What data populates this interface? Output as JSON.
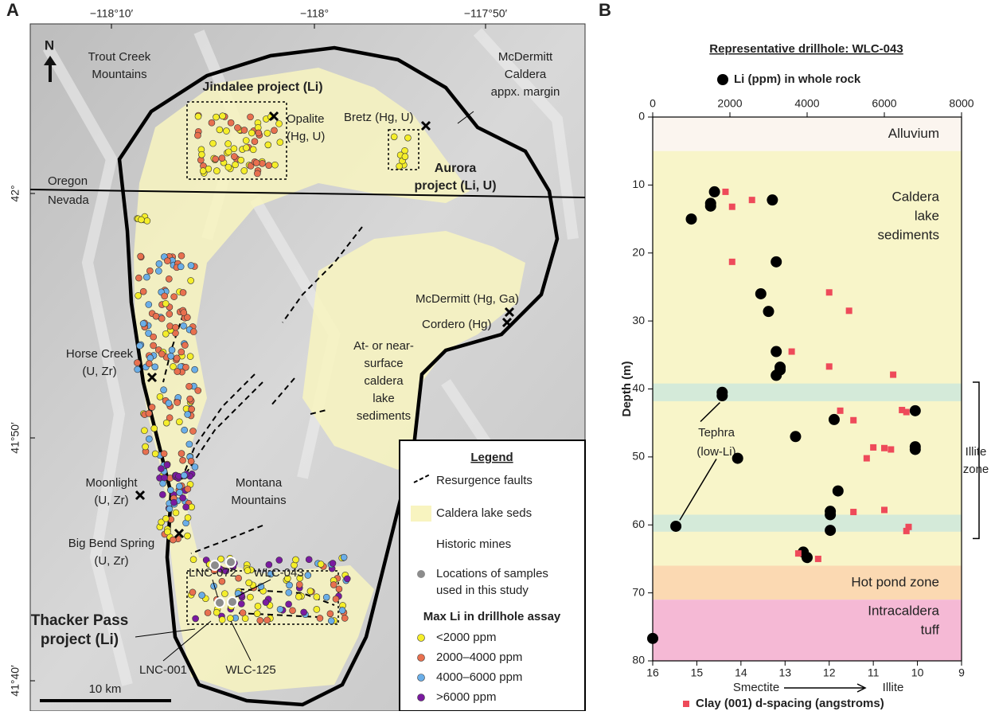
{
  "panel_labels": [
    "A",
    "B"
  ],
  "map": {
    "lon_ticks": [
      "−118°10′",
      "−118°",
      "−117°50′"
    ],
    "lat_ticks": [
      "42°",
      "41°50′",
      "41°40′"
    ],
    "north": "N",
    "scale": "10 km",
    "labels": [
      {
        "lines": [
          "Trout Creek",
          "Mountains"
        ]
      },
      {
        "lines": [
          "McDermitt",
          "Caldera",
          "appx. margin"
        ]
      },
      {
        "lines": [
          "Jindalee project (Li)"
        ],
        "bold": true
      },
      {
        "lines": [
          "Opalite",
          "(Hg, U)"
        ]
      },
      {
        "lines": [
          "Bretz (Hg, U)"
        ]
      },
      {
        "lines": [
          "Aurora",
          "project (Li, U)"
        ],
        "bold": true
      },
      {
        "lines": [
          "Oregon"
        ]
      },
      {
        "lines": [
          "Nevada"
        ]
      },
      {
        "lines": [
          "McDermitt (Hg, Ga)"
        ]
      },
      {
        "lines": [
          "Cordero (Hg)"
        ]
      },
      {
        "lines": [
          "Horse Creek",
          "(U, Zr)"
        ]
      },
      {
        "lines": [
          "At- or near-",
          "surface",
          "caldera",
          "lake",
          "sediments"
        ]
      },
      {
        "lines": [
          "Moonlight",
          "(U, Zr)"
        ]
      },
      {
        "lines": [
          "Montana",
          "Mountains"
        ]
      },
      {
        "lines": [
          "Big Bend Spring",
          "(U, Zr)"
        ]
      },
      {
        "lines": [
          "LNC-072"
        ]
      },
      {
        "lines": [
          "WLC-043"
        ]
      },
      {
        "lines": [
          "Thacker Pass",
          "project (Li)"
        ],
        "bold": true
      },
      {
        "lines": [
          "LNC-001"
        ]
      },
      {
        "lines": [
          "WLC-125"
        ]
      }
    ],
    "legend": {
      "title": "Legend",
      "items": [
        {
          "lines": [
            "Resurgence faults"
          ]
        },
        {
          "lines": [
            "Caldera lake seds"
          ],
          "color": "#f8f4c0"
        },
        {
          "lines": [
            "Historic mines"
          ]
        },
        {
          "lines": [
            "Locations of samples",
            "used in this study"
          ],
          "color": "#8c8c8c"
        }
      ],
      "li_title": "Max Li in drillhole assay",
      "li_classes": [
        {
          "label": "<2000 ppm",
          "color": "#f5ee2a"
        },
        {
          "label": "2000–4000 ppm",
          "color": "#e8704f"
        },
        {
          "label": "4000–6000 ppm",
          "color": "#6aaee8"
        },
        {
          "label": ">6000 ppm",
          "color": "#7a1aa0"
        }
      ]
    }
  },
  "chart_data": {
    "type": "scatter",
    "title": "Representative drillhole: WLC-043",
    "y_label": "Depth (m)",
    "x_label_left": "Smectite",
    "x_label_right": "Illite",
    "ylim": [
      0,
      80
    ],
    "yticks": [
      0,
      10,
      20,
      30,
      40,
      50,
      60,
      70,
      80
    ],
    "xlim": [
      16,
      9
    ],
    "xticks": [
      16,
      15,
      14,
      13,
      12,
      11,
      10,
      9
    ],
    "x2lim": [
      0,
      8000
    ],
    "x2ticks": [
      0,
      2000,
      4000,
      6000,
      8000
    ],
    "zones": [
      {
        "lines": [
          "Alluvium"
        ],
        "range": [
          0,
          5
        ],
        "color": "#fbf5ef"
      },
      {
        "lines": [
          "Caldera",
          "lake",
          "sediments"
        ],
        "range": [
          5,
          66
        ],
        "color": "#f8f5c9"
      },
      {
        "lines": [
          "Hot pond zone"
        ],
        "range": [
          66,
          71
        ],
        "color": "#fbd9b2"
      },
      {
        "lines": [
          "Intracaldera",
          "tuff"
        ],
        "range": [
          71,
          80
        ],
        "color": "#f5b9d5"
      }
    ],
    "bands": [
      [
        39.2,
        41.8
      ],
      [
        58.5,
        61
      ]
    ],
    "band_color": "#d4ead9",
    "bracket": {
      "lines": [
        "Illite",
        "zone"
      ],
      "range": [
        39,
        62
      ]
    },
    "annotation": {
      "lines": [
        "Tephra",
        "(low-Li)"
      ]
    },
    "series": [
      {
        "name": "Li (ppm) in whole rock",
        "color": "#000000",
        "marker": "circle",
        "axis": "x2",
        "x": [
          1600,
          3100,
          1500,
          1500,
          1000,
          3200,
          2800,
          3000,
          3200,
          3300,
          3300,
          3200,
          1800,
          1800,
          6800,
          4700,
          3700,
          6800,
          6800,
          2200,
          4800,
          4600,
          4600,
          600,
          4600,
          3900,
          4000,
          0
        ],
        "values": [
          11,
          12.2,
          12.7,
          13.1,
          15,
          21.3,
          26,
          28.6,
          34.5,
          36.8,
          37.2,
          38,
          40.5,
          41,
          43.2,
          44.5,
          47,
          48.5,
          48.9,
          50.2,
          55,
          58,
          58.5,
          60.2,
          60.8,
          64,
          64.8,
          76.7
        ]
      },
      {
        "name": "Clay (001) d-spacing (angstroms)",
        "color": "#ee4a5a",
        "marker": "square",
        "x": [
          14.35,
          13.75,
          14.2,
          14.2,
          12.0,
          11.55,
          12.85,
          12.0,
          10.55,
          11.75,
          11.45,
          10.35,
          10.25,
          11.0,
          11.15,
          10.75,
          10.6,
          11.45,
          10.75,
          10.2,
          10.25,
          12.7,
          12.25
        ],
        "values": [
          11,
          12.2,
          13.2,
          21.3,
          25.8,
          28.5,
          34.5,
          36.7,
          37.9,
          43.2,
          44.6,
          43.1,
          43.4,
          48.6,
          50.2,
          48.7,
          48.9,
          58.1,
          57.8,
          60.3,
          60.9,
          64.2,
          65
        ]
      }
    ]
  }
}
